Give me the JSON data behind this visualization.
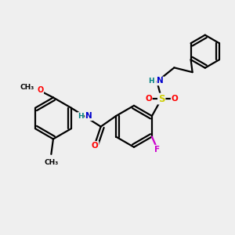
{
  "bg": "#efefef",
  "colors": {
    "C": "#000000",
    "N": "#0000cc",
    "O": "#ff0000",
    "S": "#cccc00",
    "F": "#cc00cc",
    "H": "#008080"
  },
  "lw": 1.6,
  "r1": 0.082,
  "r2": 0.065
}
